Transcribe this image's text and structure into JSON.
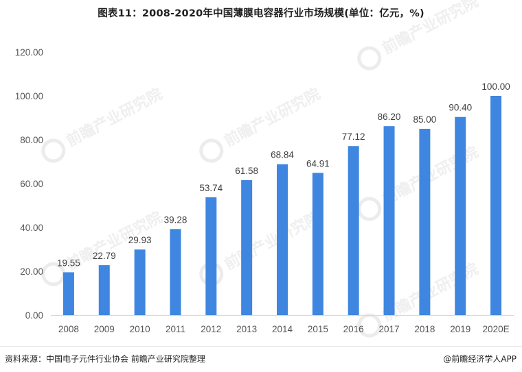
{
  "title": "图表11：2008-2020年中国薄膜电容器行业市场规模(单位：亿元，%)",
  "chart_data": {
    "type": "bar",
    "title": "图表11：2008-2020年中国薄膜电容器行业市场规模(单位：亿元，%)",
    "categories": [
      "2008",
      "2009",
      "2010",
      "2011",
      "2012",
      "2013",
      "2014",
      "2015",
      "2016",
      "2017",
      "2018",
      "2019",
      "2020E"
    ],
    "values": [
      19.55,
      22.79,
      29.93,
      39.28,
      53.74,
      61.58,
      68.84,
      64.91,
      77.12,
      86.2,
      85.0,
      90.4,
      100.0
    ],
    "value_labels": [
      "19.55",
      "22.79",
      "29.93",
      "39.28",
      "53.74",
      "61.58",
      "68.84",
      "64.91",
      "77.12",
      "86.20",
      "85.00",
      "90.40",
      "100.00"
    ],
    "ylim": [
      0,
      120
    ],
    "yticks": [
      0,
      20,
      40,
      60,
      80,
      100,
      120
    ],
    "ytick_labels": [
      "0.00",
      "20.00",
      "40.00",
      "60.00",
      "80.00",
      "100.00",
      "120.00"
    ],
    "xlabel": "",
    "ylabel": "",
    "grid": false,
    "legend": "none",
    "bar_color": "#3F86E0"
  },
  "footer": {
    "source": "资料来源：中国电子元件行业协会 前瞻产业研究院整理",
    "brand": "@前瞻经济学人APP"
  },
  "watermark": {
    "text": "前瞻产业研究院"
  }
}
